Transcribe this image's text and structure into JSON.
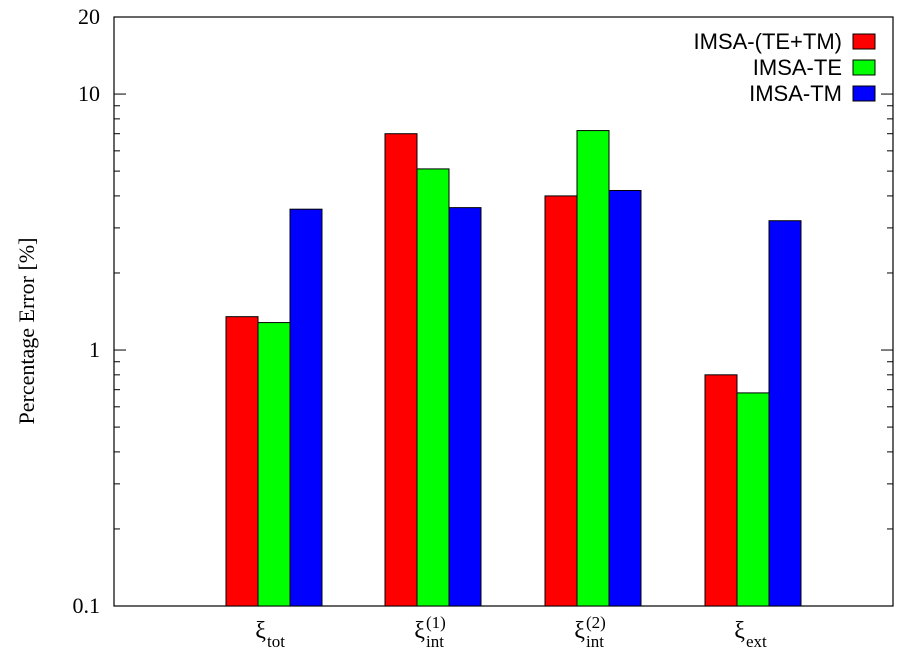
{
  "chart_data": {
    "type": "bar",
    "ylabel": "Percentage Error [%]",
    "xlabel": "",
    "yscale": "log",
    "ylim": [
      0.1,
      20
    ],
    "y_ticks": [
      {
        "value": 0.1,
        "label": "0.1"
      },
      {
        "value": 1,
        "label": "1"
      },
      {
        "value": 10,
        "label": "10"
      },
      {
        "value": 20,
        "label": "20"
      }
    ],
    "categories": [
      {
        "base": "ξ",
        "sub": "tot",
        "sup": ""
      },
      {
        "base": "ξ",
        "sub": "int",
        "sup": "(1)"
      },
      {
        "base": "ξ",
        "sub": "int",
        "sup": "(2)"
      },
      {
        "base": "ξ",
        "sub": "ext",
        "sup": ""
      }
    ],
    "series": [
      {
        "name": "IMSA-(TE+TM)",
        "color": "#ff0000",
        "values": [
          1.35,
          7.0,
          4.0,
          0.8
        ]
      },
      {
        "name": "IMSA-TE",
        "color": "#00ff00",
        "values": [
          1.28,
          5.1,
          7.2,
          0.68
        ]
      },
      {
        "name": "IMSA-TM",
        "color": "#0000ff",
        "values": [
          3.55,
          3.6,
          4.2,
          3.2
        ]
      }
    ],
    "legend_position": "top-right",
    "grid": false
  }
}
